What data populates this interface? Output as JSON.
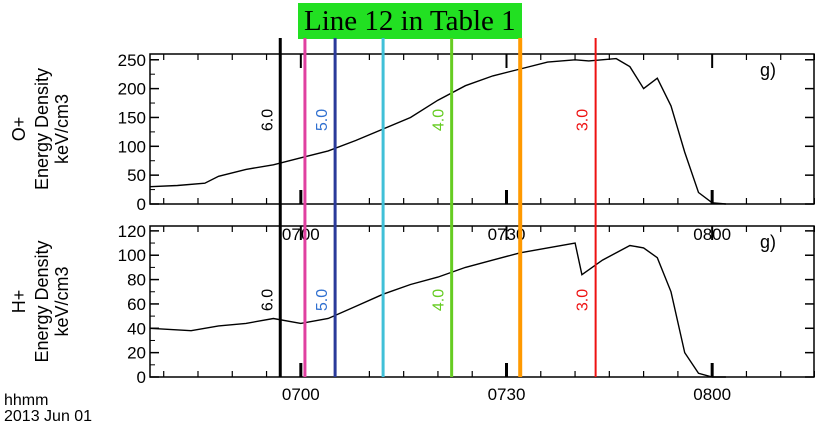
{
  "banner": {
    "text": "Line 12 in Table 1",
    "color": "#22e022"
  },
  "footer": {
    "axis_unit": "hhmm",
    "date": "2013 Jun 01"
  },
  "chart_data": [
    {
      "type": "line",
      "panel_id": "oplus",
      "panel_label": "g)",
      "ylabel_lines": [
        "O+",
        "Energy Density",
        "keV/cm3"
      ],
      "ylim": [
        0,
        260
      ],
      "yticks": [
        0,
        50,
        100,
        150,
        200,
        250
      ],
      "yticklabels": [
        "0",
        "50",
        "100",
        "150",
        "200",
        "250"
      ],
      "xlim": [
        "06:38",
        "08:15"
      ],
      "xticks": [
        "07:00",
        "07:30",
        "08:00"
      ],
      "xticklabels": [
        "0700",
        "0730",
        "0800"
      ],
      "series": [
        {
          "color": "#000000",
          "x": [
            "06:38",
            "06:42",
            "06:46",
            "06:48",
            "06:52",
            "06:56",
            "07:00",
            "07:04",
            "07:08",
            "07:12",
            "07:16",
            "07:20",
            "07:24",
            "07:28",
            "07:32",
            "07:36",
            "07:40",
            "07:42",
            "07:46",
            "07:48",
            "07:50",
            "07:52",
            "07:54",
            "07:56",
            "07:58",
            "08:00",
            "08:02"
          ],
          "y": [
            30,
            32,
            36,
            48,
            60,
            68,
            80,
            92,
            110,
            130,
            150,
            180,
            205,
            222,
            234,
            246,
            250,
            248,
            252,
            238,
            200,
            218,
            170,
            90,
            20,
            2,
            0
          ]
        }
      ]
    },
    {
      "type": "line",
      "panel_id": "hplus",
      "panel_label": "g)",
      "ylabel_lines": [
        "H+",
        "Energy Density",
        "keV/cm3"
      ],
      "ylim": [
        0,
        124
      ],
      "yticks": [
        0,
        20,
        40,
        60,
        80,
        100,
        120
      ],
      "yticklabels": [
        "0",
        "20",
        "40",
        "60",
        "80",
        "100",
        "120"
      ],
      "xlim": [
        "06:38",
        "08:15"
      ],
      "xticks": [
        "07:00",
        "07:30",
        "08:00"
      ],
      "xticklabels": [
        "0700",
        "0730",
        "0800"
      ],
      "series": [
        {
          "color": "#000000",
          "x": [
            "06:38",
            "06:44",
            "06:48",
            "06:52",
            "06:56",
            "07:00",
            "07:04",
            "07:08",
            "07:12",
            "07:16",
            "07:20",
            "07:24",
            "07:28",
            "07:32",
            "07:36",
            "07:40",
            "07:41",
            "07:44",
            "07:48",
            "07:50",
            "07:52",
            "07:54",
            "07:56",
            "07:58",
            "08:00",
            "08:02"
          ],
          "y": [
            40,
            38,
            42,
            44,
            48,
            44,
            48,
            58,
            68,
            76,
            82,
            90,
            96,
            102,
            106,
            110,
            84,
            96,
            108,
            106,
            98,
            70,
            20,
            3,
            0,
            0
          ]
        }
      ]
    }
  ],
  "vertical_lines": [
    {
      "x": "06:57",
      "color": "#000000",
      "label": "6.0",
      "width": 3
    },
    {
      "x": "07:00.6",
      "color": "#e040a0",
      "label": "",
      "width": 3
    },
    {
      "x": "07:05",
      "color": "#2a3a9a",
      "label": "5.0",
      "label_color": "#3070d0",
      "width": 3
    },
    {
      "x": "07:12",
      "color": "#40c0d8",
      "label": "",
      "width": 3
    },
    {
      "x": "07:22",
      "color": "#66cc22",
      "label": "4.0",
      "width": 3
    },
    {
      "x": "07:32",
      "color": "#ff9900",
      "label": "",
      "width": 4
    },
    {
      "x": "07:43",
      "color": "#ee1111",
      "label": "3.0",
      "width": 2
    }
  ]
}
